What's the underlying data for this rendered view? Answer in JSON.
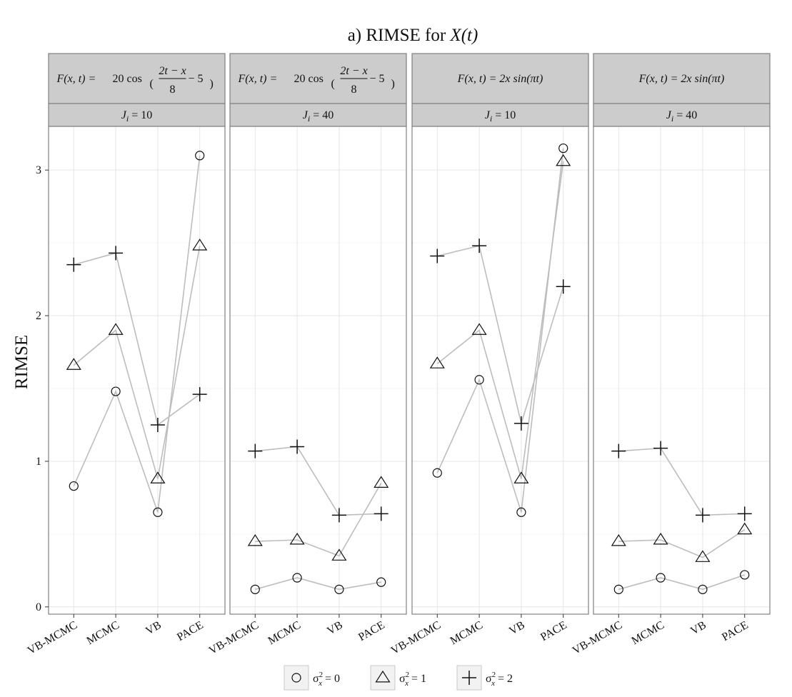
{
  "chart_data": {
    "type": "line",
    "title_prefix": "a) RIMSE for ",
    "title_math": "X(t)",
    "ylabel": "RIMSE",
    "xlabel": "",
    "categories": [
      "VB-MCMC",
      "MCMC",
      "VB",
      "PACE"
    ],
    "ylim": [
      -0.05,
      3.3
    ],
    "yticks": [
      0,
      1,
      2,
      3
    ],
    "grid": true,
    "legend_position": "bottom",
    "legend": [
      {
        "symbol": "circle",
        "label": "σ²ₓ = 0"
      },
      {
        "symbol": "triangle",
        "label": "σ²ₓ = 1"
      },
      {
        "symbol": "plus",
        "label": "σ²ₓ = 2"
      }
    ],
    "panels": [
      {
        "strip_top": "F(x, t) = 20 cos((2t − x)/8 − 5)",
        "strip_bottom": "J_i = 10",
        "series": [
          {
            "symbol": "circle",
            "values": [
              0.83,
              1.48,
              0.65,
              3.1
            ]
          },
          {
            "symbol": "triangle",
            "values": [
              1.66,
              1.9,
              0.88,
              2.48
            ]
          },
          {
            "symbol": "plus",
            "values": [
              2.35,
              2.43,
              1.25,
              1.46
            ]
          }
        ]
      },
      {
        "strip_top": "F(x, t) = 20 cos((2t − x)/8 − 5)",
        "strip_bottom": "J_i = 40",
        "series": [
          {
            "symbol": "circle",
            "values": [
              0.12,
              0.2,
              0.12,
              0.17
            ]
          },
          {
            "symbol": "triangle",
            "values": [
              0.45,
              0.46,
              0.35,
              0.85
            ]
          },
          {
            "symbol": "plus",
            "values": [
              1.07,
              1.1,
              0.63,
              0.64
            ]
          }
        ]
      },
      {
        "strip_top": "F(x, t) = 2x sin(πt)",
        "strip_bottom": "J_i = 10",
        "series": [
          {
            "symbol": "circle",
            "values": [
              0.92,
              1.56,
              0.65,
              3.15
            ]
          },
          {
            "symbol": "triangle",
            "values": [
              1.67,
              1.9,
              0.88,
              3.06
            ]
          },
          {
            "symbol": "plus",
            "values": [
              2.41,
              2.48,
              1.26,
              2.2
            ]
          }
        ]
      },
      {
        "strip_top": "F(x, t) = 2x sin(πt)",
        "strip_bottom": "J_i = 40",
        "series": [
          {
            "symbol": "circle",
            "values": [
              0.12,
              0.2,
              0.12,
              0.22
            ]
          },
          {
            "symbol": "triangle",
            "values": [
              0.45,
              0.46,
              0.34,
              0.53
            ]
          },
          {
            "symbol": "plus",
            "values": [
              1.07,
              1.09,
              0.63,
              0.64
            ]
          }
        ]
      }
    ]
  }
}
